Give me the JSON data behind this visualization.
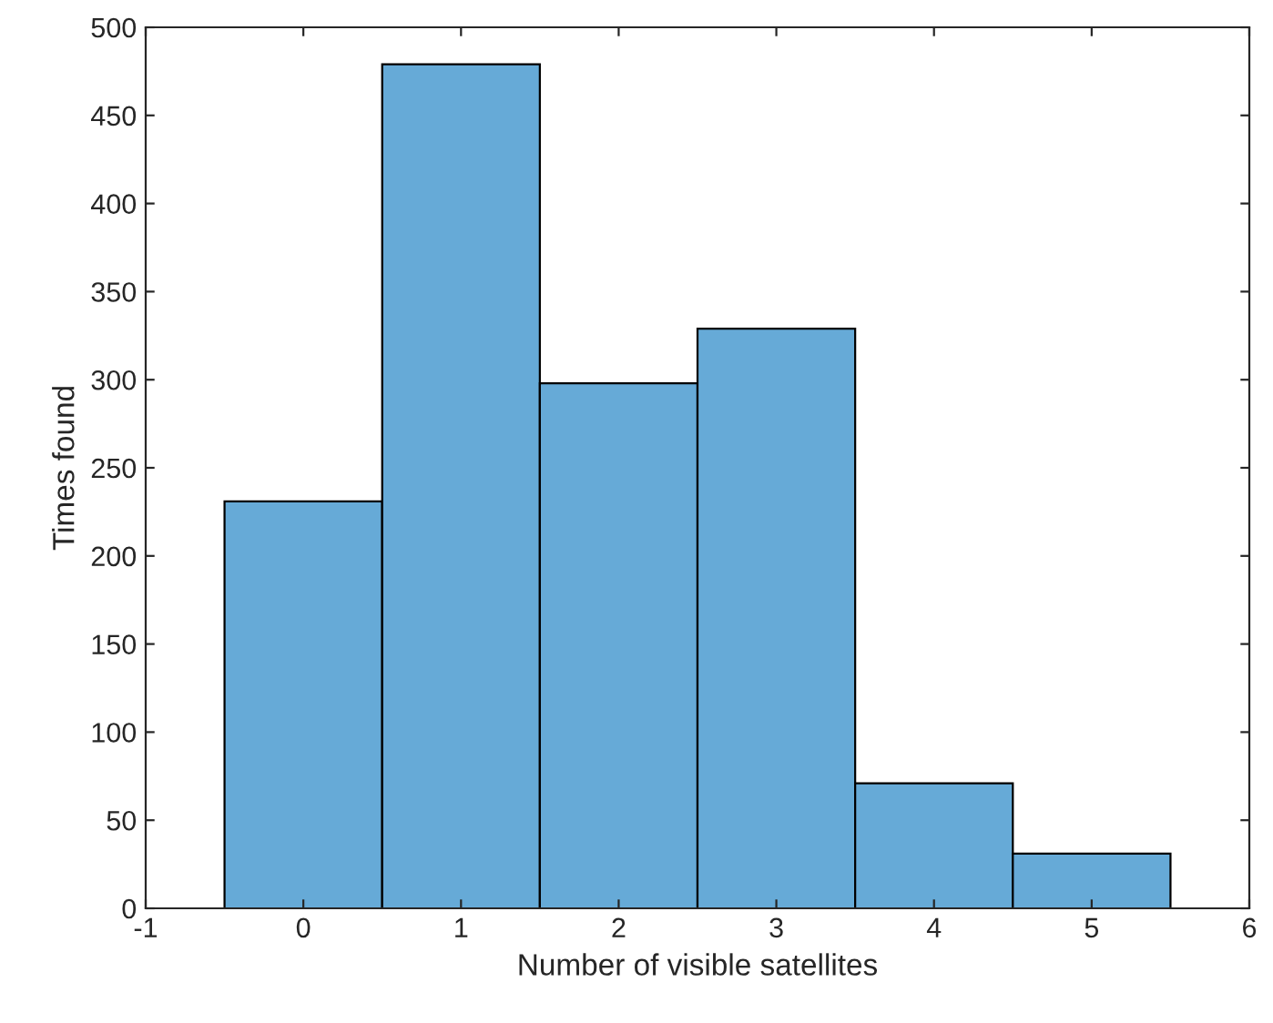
{
  "chart_data": {
    "type": "histogram",
    "xlabel": "Number of visible satellites",
    "ylabel": "Times found",
    "bins": [
      -0.5,
      0.5,
      1.5,
      2.5,
      3.5,
      4.5,
      5.5
    ],
    "values": [
      231,
      479,
      298,
      329,
      71,
      31
    ],
    "color": "#66aad7",
    "xlim": [
      -1,
      6
    ],
    "xticks": [
      -1,
      0,
      1,
      2,
      3,
      4,
      5,
      6
    ],
    "ylim": [
      0,
      500
    ],
    "yticks": [
      0,
      50,
      100,
      150,
      200,
      250,
      300,
      350,
      400,
      450,
      500
    ],
    "grid": false,
    "legend": false
  }
}
